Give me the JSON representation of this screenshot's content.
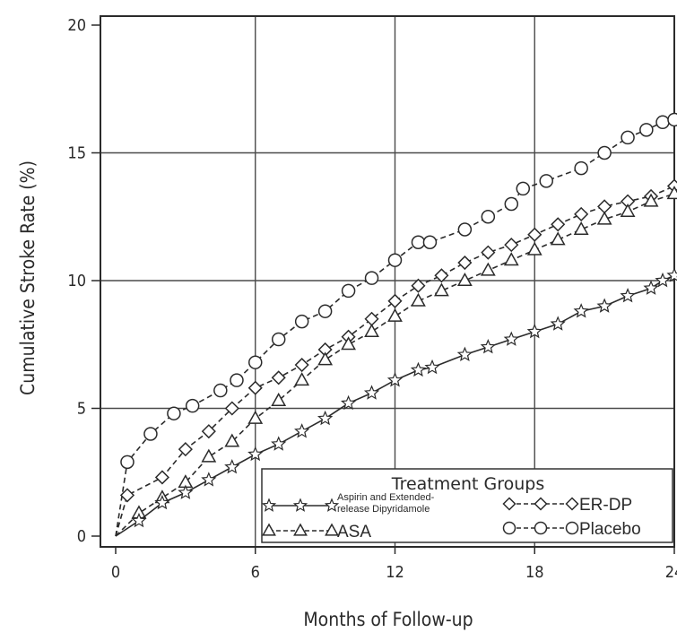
{
  "chart_data": {
    "type": "line",
    "title": "",
    "xlabel": "Months of Follow-up",
    "ylabel": "Cumulative Stroke Rate (%)",
    "xlim": [
      0,
      24
    ],
    "ylim": [
      0,
      20
    ],
    "x_ticks": [
      "0",
      "6",
      "12",
      "18",
      "24"
    ],
    "y_ticks": [
      "0",
      "5",
      "10",
      "15",
      "20"
    ],
    "grid": true,
    "legend": {
      "title": "Treatment Groups",
      "placement": "bottom-right"
    },
    "series": [
      {
        "name": "Placebo",
        "label": "Placebo",
        "marker": "circle",
        "line": "dashed",
        "x": [
          0,
          0.5,
          1.5,
          2.5,
          3.3,
          4.5,
          5.2,
          6,
          7,
          8,
          9,
          10,
          11,
          12,
          13,
          13.5,
          15,
          16,
          17,
          17.5,
          18.5,
          20,
          21,
          22,
          22.8,
          23.5,
          24
        ],
        "y": [
          0,
          2.9,
          4.0,
          4.8,
          5.1,
          5.7,
          6.1,
          6.8,
          7.7,
          8.4,
          8.8,
          9.6,
          10.1,
          10.8,
          11.5,
          11.5,
          12.0,
          12.5,
          13.0,
          13.6,
          13.9,
          14.4,
          15.0,
          15.6,
          15.9,
          16.2,
          16.3
        ]
      },
      {
        "name": "ER-DP",
        "label": "ER-DP",
        "marker": "diamond",
        "line": "dashed",
        "x": [
          0,
          0.5,
          2,
          3,
          4,
          5,
          6,
          7,
          8,
          9,
          10,
          11,
          12,
          13,
          14,
          15,
          16,
          17,
          18,
          19,
          20,
          21,
          22,
          23,
          24
        ],
        "y": [
          0,
          1.6,
          2.3,
          3.4,
          4.1,
          5.0,
          5.8,
          6.2,
          6.7,
          7.3,
          7.8,
          8.5,
          9.2,
          9.8,
          10.2,
          10.7,
          11.1,
          11.4,
          11.8,
          12.2,
          12.6,
          12.9,
          13.1,
          13.3,
          13.7
        ]
      },
      {
        "name": "ASA",
        "label": "ASA",
        "marker": "triangle",
        "line": "dashed",
        "x": [
          0,
          1,
          2,
          3,
          4,
          5,
          6,
          7,
          8,
          9,
          10,
          11,
          12,
          13,
          14,
          15,
          16,
          17,
          18,
          19,
          20,
          21,
          22,
          23,
          24
        ],
        "y": [
          0,
          0.9,
          1.5,
          2.1,
          3.1,
          3.7,
          4.6,
          5.3,
          6.1,
          6.9,
          7.5,
          8.0,
          8.6,
          9.2,
          9.6,
          10.0,
          10.4,
          10.8,
          11.2,
          11.6,
          12.0,
          12.4,
          12.7,
          13.1,
          13.4
        ]
      },
      {
        "name": "Aspirin and Extended-release Dipyridamole",
        "label": [
          "Aspirin and Extended-",
          "release Dipyridamole"
        ],
        "marker": "star",
        "line": "solid",
        "x": [
          0,
          1,
          2,
          3,
          4,
          5,
          6,
          7,
          8,
          9,
          10,
          11,
          12,
          13,
          13.6,
          15,
          16,
          17,
          18,
          19,
          20,
          21,
          22,
          23,
          23.5,
          24
        ],
        "y": [
          0,
          0.6,
          1.3,
          1.7,
          2.2,
          2.7,
          3.2,
          3.6,
          4.1,
          4.6,
          5.2,
          5.6,
          6.1,
          6.5,
          6.6,
          7.1,
          7.4,
          7.7,
          8.0,
          8.3,
          8.8,
          9.0,
          9.4,
          9.7,
          10.0,
          10.2
        ]
      }
    ]
  }
}
